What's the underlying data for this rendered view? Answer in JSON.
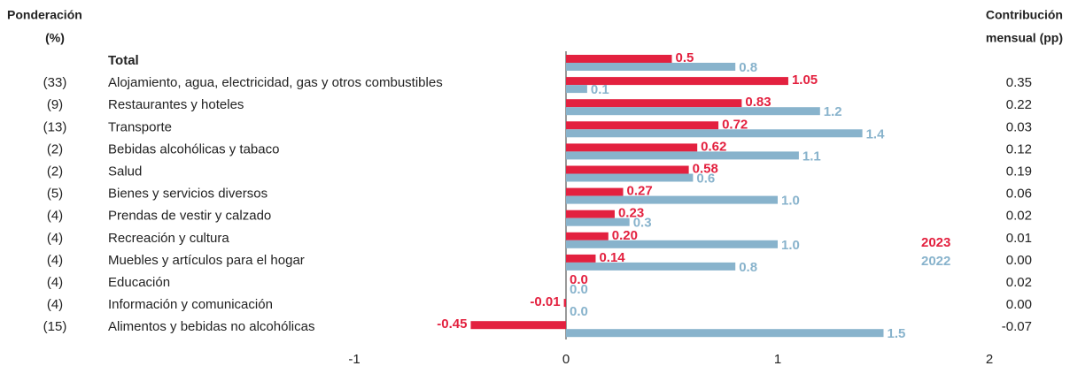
{
  "chart_data": {
    "type": "bar",
    "orientation": "horizontal",
    "weight_header": [
      "Ponderación",
      "(%)"
    ],
    "contribution_header": [
      "Contribución",
      "mensual (pp)"
    ],
    "categories": [
      "Total",
      "Alojamiento, agua, electricidad, gas y otros combustibles",
      "Restaurantes y hoteles",
      "Transporte",
      "Bebidas alcohólicas y tabaco",
      "Salud",
      "Bienes y servicios diversos",
      "Prendas de vestir y calzado",
      "Recreación y cultura",
      "Muebles y artículos para el hogar",
      "Educación",
      "Información y comunicación",
      "Alimentos y bebidas no alcohólicas"
    ],
    "weights": [
      null,
      "(33)",
      "(9)",
      "(13)",
      "(2)",
      "(2)",
      "(5)",
      "(4)",
      "(4)",
      "(4)",
      "(4)",
      "(4)",
      "(15)"
    ],
    "contributions": [
      null,
      "0.35",
      "0.22",
      "0.03",
      "0.12",
      "0.19",
      "0.06",
      "0.02",
      "0.01",
      "0.00",
      "0.02",
      "0.00",
      "-0.07"
    ],
    "series": [
      {
        "name": "2023",
        "color": "#e3213f",
        "values": [
          0.5,
          1.05,
          0.83,
          0.72,
          0.62,
          0.58,
          0.27,
          0.23,
          0.2,
          0.14,
          0,
          -0.01,
          -0.45
        ],
        "value_labels": [
          "0.5",
          "1.05",
          "0.83",
          "0.72",
          "0.62",
          "0.58",
          "0.27",
          "0.23",
          "0.20",
          "0.14",
          "0.0",
          "-0.01",
          "-0.45"
        ]
      },
      {
        "name": "2022",
        "color": "#88b3cc",
        "values": [
          0.8,
          0.1,
          1.2,
          1.4,
          1.1,
          0.6,
          1.0,
          0.3,
          1.0,
          0.8,
          0,
          0,
          1.5
        ],
        "value_labels": [
          "0.8",
          "0.1",
          "1.2",
          "1.4",
          "1.1",
          "0.6",
          "1.0",
          "0.3",
          "1.0",
          "0.8",
          "0.0",
          "0.0",
          "1.5"
        ]
      }
    ],
    "xlim": [
      -1,
      2
    ],
    "xticks": [
      -1,
      0,
      1,
      2
    ]
  }
}
